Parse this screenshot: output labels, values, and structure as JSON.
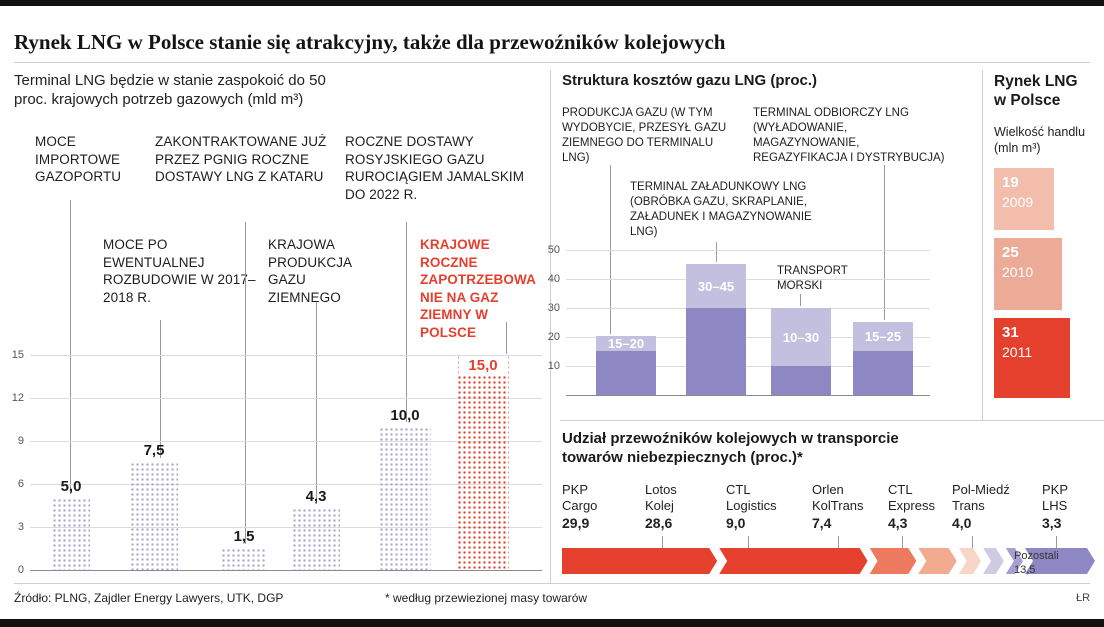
{
  "page": {
    "title": "Rynek LNG w Polsce stanie się atrakcyjny, także dla przewoźników kolejowych",
    "source": "Źródło: PLNG, Zajdler Energy Lawyers, UTK, DGP",
    "footnote": "* według przewiezionej masy towarów",
    "credit": "ŁR"
  },
  "colors": {
    "accent_red": "#e5402d",
    "purple_dark": "#8d87c3",
    "purple_light": "#c3bfdf",
    "dot_blue": "#a9a5cf",
    "salmon_2009": "#f2bdab",
    "salmon_2010": "#ecab97"
  },
  "chart_data": [
    {
      "type": "bar",
      "title": "Terminal LNG będzie w stanie zaspokoić do 50 proc. krajowych potrzeb gazowych (mld m³)",
      "categories": [
        "MOCE IMPORTOWE GAZOPORTU",
        "MOCE PO EWENTUALNEJ ROZBUDOWIE W 2017–2018 R.",
        "ZAKONTRAKTOWANE JUŻ PRZEZ PGNIG ROCZNE DOSTAWY LNG Z KATARU",
        "KRAJOWA PRODUKCJA GAZU ZIEMNEGO",
        "ROCZNE DOSTAWY ROSYJSKIEGO GAZU RUROCIĄGIEM JAMALSKIM DO 2022 R.",
        "KRAJOWE ROCZNE ZAPOTRZEBOWANIE NA GAZ ZIEMNY W POLSCE"
      ],
      "values": [
        5.0,
        7.5,
        1.5,
        4.3,
        10.0,
        15.0
      ],
      "value_labels": [
        "5,0",
        "7,5",
        "1,5",
        "4,3",
        "10,0",
        "15,0"
      ],
      "ylim": [
        0,
        15
      ],
      "yticks": [
        0,
        3,
        6,
        9,
        12,
        15
      ],
      "highlight_category": "KRAJOWE ROCZNE ZAPOTRZEBOWANIE NA GAZ ZIEMNY W POLSCE",
      "style": "dotted-bars, grid on, highlighted bar in red"
    },
    {
      "type": "bar",
      "title": "Struktura kosztów gazu LNG (proc.)",
      "categories": [
        "PRODUKCJA GAZU (W TYM WYDOBYCIE, PRZESYŁ GAZU ZIEMNEGO DO TERMINALU LNG)",
        "TERMINAL ZAŁADUNKOWY LNG (OBRÓBKA GAZU, SKRAPLANIE, ZAŁADUNEK I MAGAZYNOWANIE LNG)",
        "TRANSPORT MORSKI",
        "TERMINAL ODBIORCZY LNG (WYŁADOWANIE, MAGAZYNOWANIE, REGAZYFIKACJA I DYSTRYBUCJA)"
      ],
      "series": [
        {
          "name": "min",
          "values": [
            15,
            30,
            10,
            15
          ]
        },
        {
          "name": "max",
          "values": [
            20,
            45,
            30,
            25
          ]
        }
      ],
      "range_labels": [
        "15–20",
        "30–45",
        "10–30",
        "15–25"
      ],
      "ylim": [
        0,
        50
      ],
      "yticks": [
        10,
        20,
        30,
        40,
        50
      ],
      "style": "range bars: dark purple = min, light purple = min–max band"
    },
    {
      "type": "bar",
      "title": "Rynek LNG w Polsce",
      "subtitle": "Wielkość handlu (mln m³)",
      "categories": [
        "2009",
        "2010",
        "2011"
      ],
      "values": [
        19,
        25,
        31
      ],
      "value_labels": [
        "19",
        "25",
        "31"
      ],
      "style": "growing colored blocks, 2011 highlighted in red"
    },
    {
      "type": "bar",
      "title": "Udział przewoźników kolejowych w transporcie towarów niebezpiecznych (proc.)*",
      "categories": [
        "PKP Cargo",
        "Lotos Kolej",
        "CTL Logistics",
        "Orlen KolTrans",
        "CTL Express",
        "Pol-Miedź Trans",
        "PKP LHS",
        "Pozostali"
      ],
      "values": [
        29.9,
        28.6,
        9.0,
        7.4,
        4.3,
        4.0,
        3.3,
        13.5
      ],
      "value_labels": [
        "29,9",
        "28,6",
        "9,0",
        "7,4",
        "4,3",
        "4,0",
        "3,3",
        "13,5"
      ],
      "segment_colors": [
        "#e5402d",
        "#e5402d",
        "#ec7a5e",
        "#f2ab90",
        "#f7d6c6",
        "#cfcbe4",
        "#a5a0cf",
        "#8d87c3"
      ],
      "style": "horizontal chevron-arrow 100% stacked bar"
    }
  ]
}
